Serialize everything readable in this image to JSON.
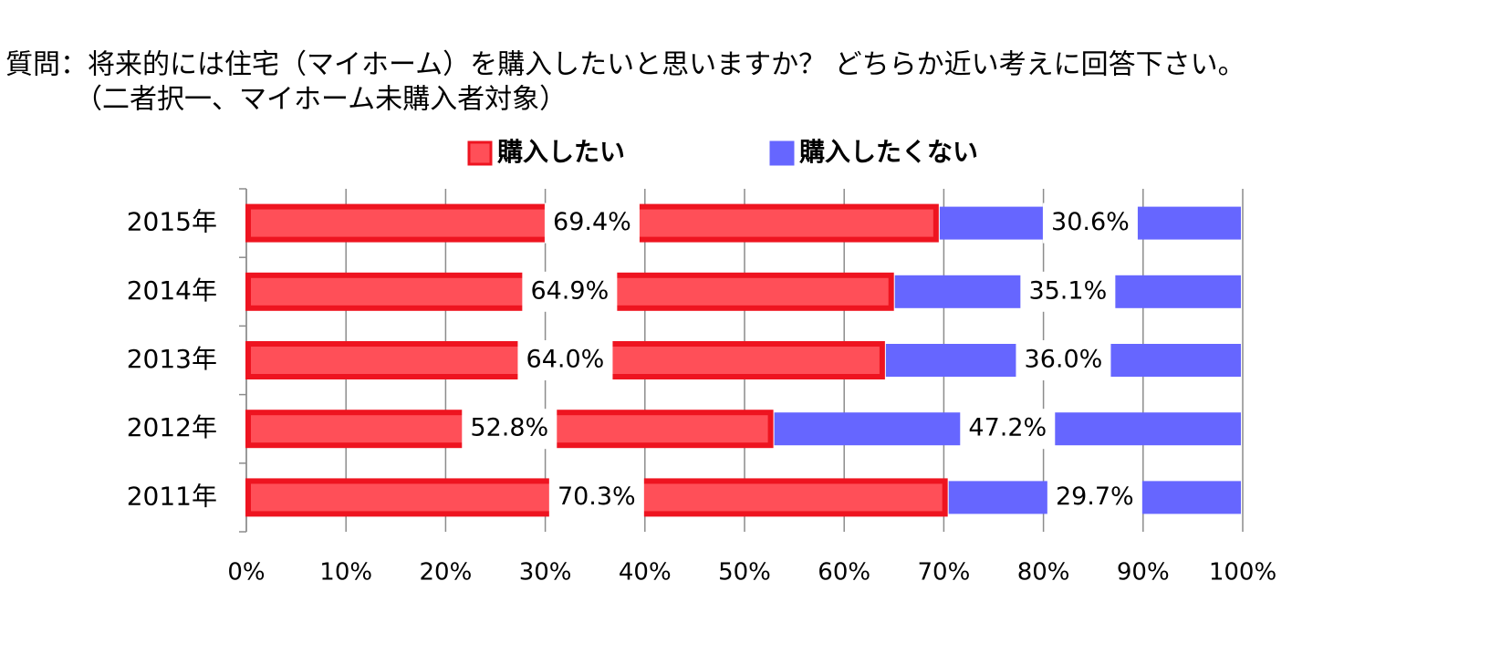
{
  "chart_data": {
    "type": "stacked-bar-horizontal",
    "title": "質問：将来的には住宅（マイホーム）を購入したいと思いますか？ どちらか近い考えに回答下さい。",
    "subtitle": "（二者択一、マイホーム未購入者対象）",
    "categories": [
      "2015年",
      "2014年",
      "2013年",
      "2012年",
      "2011年"
    ],
    "series": [
      {
        "name": "購入したい",
        "color": "#ff4f58",
        "border": "#ee1420",
        "values": [
          69.4,
          64.9,
          64.0,
          52.8,
          70.3
        ],
        "value_labels": [
          "69.4%",
          "64.9%",
          "64.0%",
          "52.8%",
          "70.3%"
        ]
      },
      {
        "name": "購入したくない",
        "color": "#6666ff",
        "border": "#6666ff",
        "values": [
          30.6,
          35.1,
          36.0,
          47.2,
          29.7
        ],
        "value_labels": [
          "30.6%",
          "35.1%",
          "36.0%",
          "47.2%",
          "29.7%"
        ]
      }
    ],
    "xlim": [
      0,
      100
    ],
    "xticks": [
      {
        "value": 0,
        "label": "0%"
      },
      {
        "value": 10,
        "label": "10%"
      },
      {
        "value": 20,
        "label": "20%"
      },
      {
        "value": 30,
        "label": "30%"
      },
      {
        "value": 40,
        "label": "40%"
      },
      {
        "value": 50,
        "label": "50%"
      },
      {
        "value": 60,
        "label": "60%"
      },
      {
        "value": 70,
        "label": "70%"
      },
      {
        "value": 80,
        "label": "80%"
      },
      {
        "value": 90,
        "label": "90%"
      },
      {
        "value": 100,
        "label": "100%"
      }
    ],
    "grid": true
  }
}
